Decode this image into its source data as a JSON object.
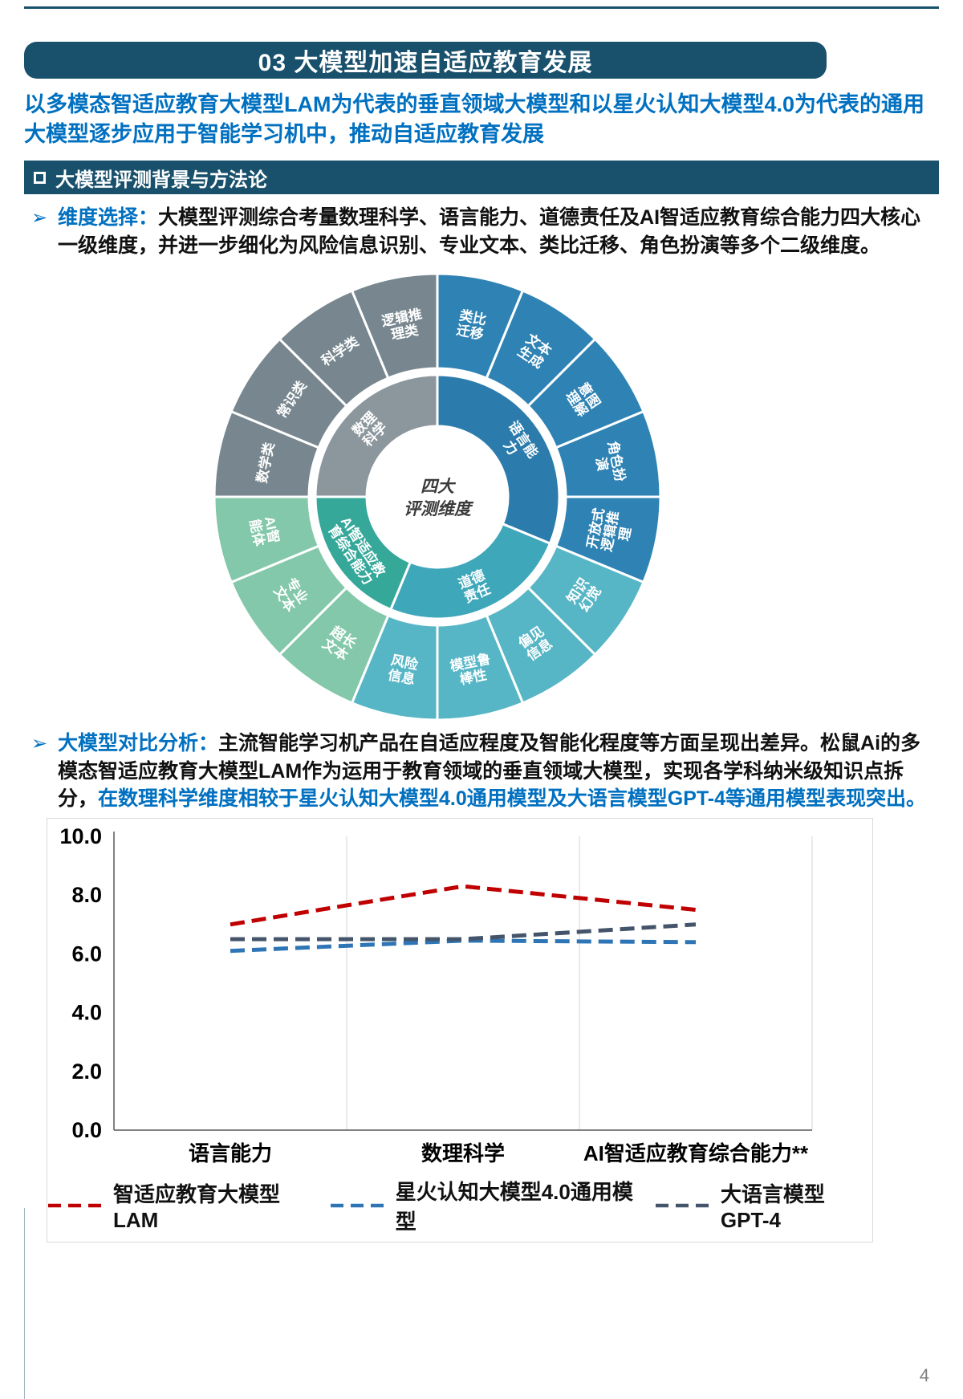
{
  "page": {
    "background": "#ffffff",
    "accent_dark": "#19506C",
    "accent_blue": "#0070C0",
    "page_number": "4"
  },
  "header": {
    "title": "03 大模型加速自适应教育发展"
  },
  "intro": {
    "text": "以多模态智适应教育大模型LAM为代表的垂直领域大模型和以星火认知大模型4.0为代表的通用大模型逐步应用于智能学习机中，推动自适应教育发展"
  },
  "section": {
    "title": "大模型评测背景与方法论"
  },
  "bullets": [
    {
      "marker": "➢",
      "segments": [
        {
          "text": "维度选择：",
          "style": "blue-bold"
        },
        {
          "text": "大模型评测综合考量数理科学、语言能力、道德责任及AI智适应教育综合能力四大核心一级维度，并进一步细化为风险信息识别、专业文本、类比迁移、角色扮演等多个二级维度。",
          "style": "black"
        }
      ]
    },
    {
      "marker": "➢",
      "segments": [
        {
          "text": "大模型对比分析：",
          "style": "blue-bold"
        },
        {
          "text": "主流智能学习机产品在自适应程度及智能化程度等方面呈现出差异。松鼠Ai的多模态智适应教育大模型LAM作为运用于教育领域的垂直领域大模型，实现各学科纳米级知识点拆分，",
          "style": "black"
        },
        {
          "text": "在数理科学维度相较于星火认知大模型4.0通用模型及大语言模型GPT-4等通用模型表现突出。",
          "style": "blue-bold"
        }
      ]
    }
  ],
  "sunburst": {
    "center_lines": [
      "四大",
      "评测维度"
    ],
    "categories": [
      {
        "name": "语言能力",
        "name_lines": [
          "语言能",
          "力"
        ],
        "inner_color": "#2B7CAC",
        "outer_color": "#2F83B4",
        "children": [
          {
            "label": "类比迁移",
            "lines": [
              "类比",
              "迁移"
            ]
          },
          {
            "label": "文本生成",
            "lines": [
              "文本",
              "生成"
            ]
          },
          {
            "label": "意图理解",
            "lines": [
              "意图",
              "理解"
            ]
          },
          {
            "label": "角色扮演",
            "lines": [
              "角色扮",
              "演"
            ]
          },
          {
            "label": "开放式逻辑推理",
            "lines": [
              "开放式",
              "逻辑推",
              "理"
            ]
          }
        ]
      },
      {
        "name": "道德责任",
        "name_lines": [
          "道德",
          "责任"
        ],
        "inner_color": "#3FA7BA",
        "outer_color": "#57B6C6",
        "children": [
          {
            "label": "知识幻觉",
            "lines": [
              "知识",
              "幻觉"
            ]
          },
          {
            "label": "偏见信息",
            "lines": [
              "偏见",
              "信息"
            ]
          },
          {
            "label": "模型鲁棒性",
            "lines": [
              "模型鲁",
              "棒性"
            ]
          },
          {
            "label": "风险信息",
            "lines": [
              "风险",
              "信息"
            ]
          }
        ]
      },
      {
        "name": "AI智适应教育综合能力",
        "name_lines": [
          "AI智适应教",
          "育综合能力"
        ],
        "inner_color": "#35A89A",
        "outer_color": "#83C8AA",
        "children": [
          {
            "label": "超长文本",
            "lines": [
              "超长",
              "文本"
            ]
          },
          {
            "label": "专业文本",
            "lines": [
              "专业",
              "文本"
            ]
          },
          {
            "label": "AI智能体",
            "lines": [
              "AI智",
              "能体"
            ]
          }
        ]
      },
      {
        "name": "数理科学",
        "name_lines": [
          "数理",
          "科学"
        ],
        "inner_color": "#8C979D",
        "outer_color": "#78878F",
        "children": [
          {
            "label": "数学类",
            "lines": [
              "数学类"
            ]
          },
          {
            "label": "常识类",
            "lines": [
              "常识类"
            ]
          },
          {
            "label": "科学类",
            "lines": [
              "科学类"
            ]
          },
          {
            "label": "逻辑推理类",
            "lines": [
              "逻辑推",
              "理类"
            ]
          }
        ]
      }
    ]
  },
  "chart_data": {
    "type": "line",
    "title": "",
    "categories": [
      "语言能力",
      "数理科学",
      "AI智适应教育综合能力**"
    ],
    "series": [
      {
        "name": "智适应教育大模型LAM",
        "color": "#C00000",
        "dashed": true,
        "values": [
          7.0,
          8.3,
          7.5
        ]
      },
      {
        "name": "星火认知大模型4.0通用模型",
        "color": "#2E75B6",
        "dashed": true,
        "values": [
          6.1,
          6.45,
          6.4
        ]
      },
      {
        "name": "大语言模型GPT-4",
        "color": "#44546A",
        "dashed": true,
        "values": [
          6.5,
          6.5,
          7.0
        ]
      }
    ],
    "ylim": [
      0,
      10
    ],
    "yticks": [
      10,
      8,
      6,
      4,
      2,
      0
    ],
    "ytick_labels": [
      "10.0",
      "8.0",
      "6.0",
      "4.0",
      "2.0",
      "0.0"
    ],
    "grid": "vertical-category-boundaries",
    "legend_position": "bottom"
  }
}
